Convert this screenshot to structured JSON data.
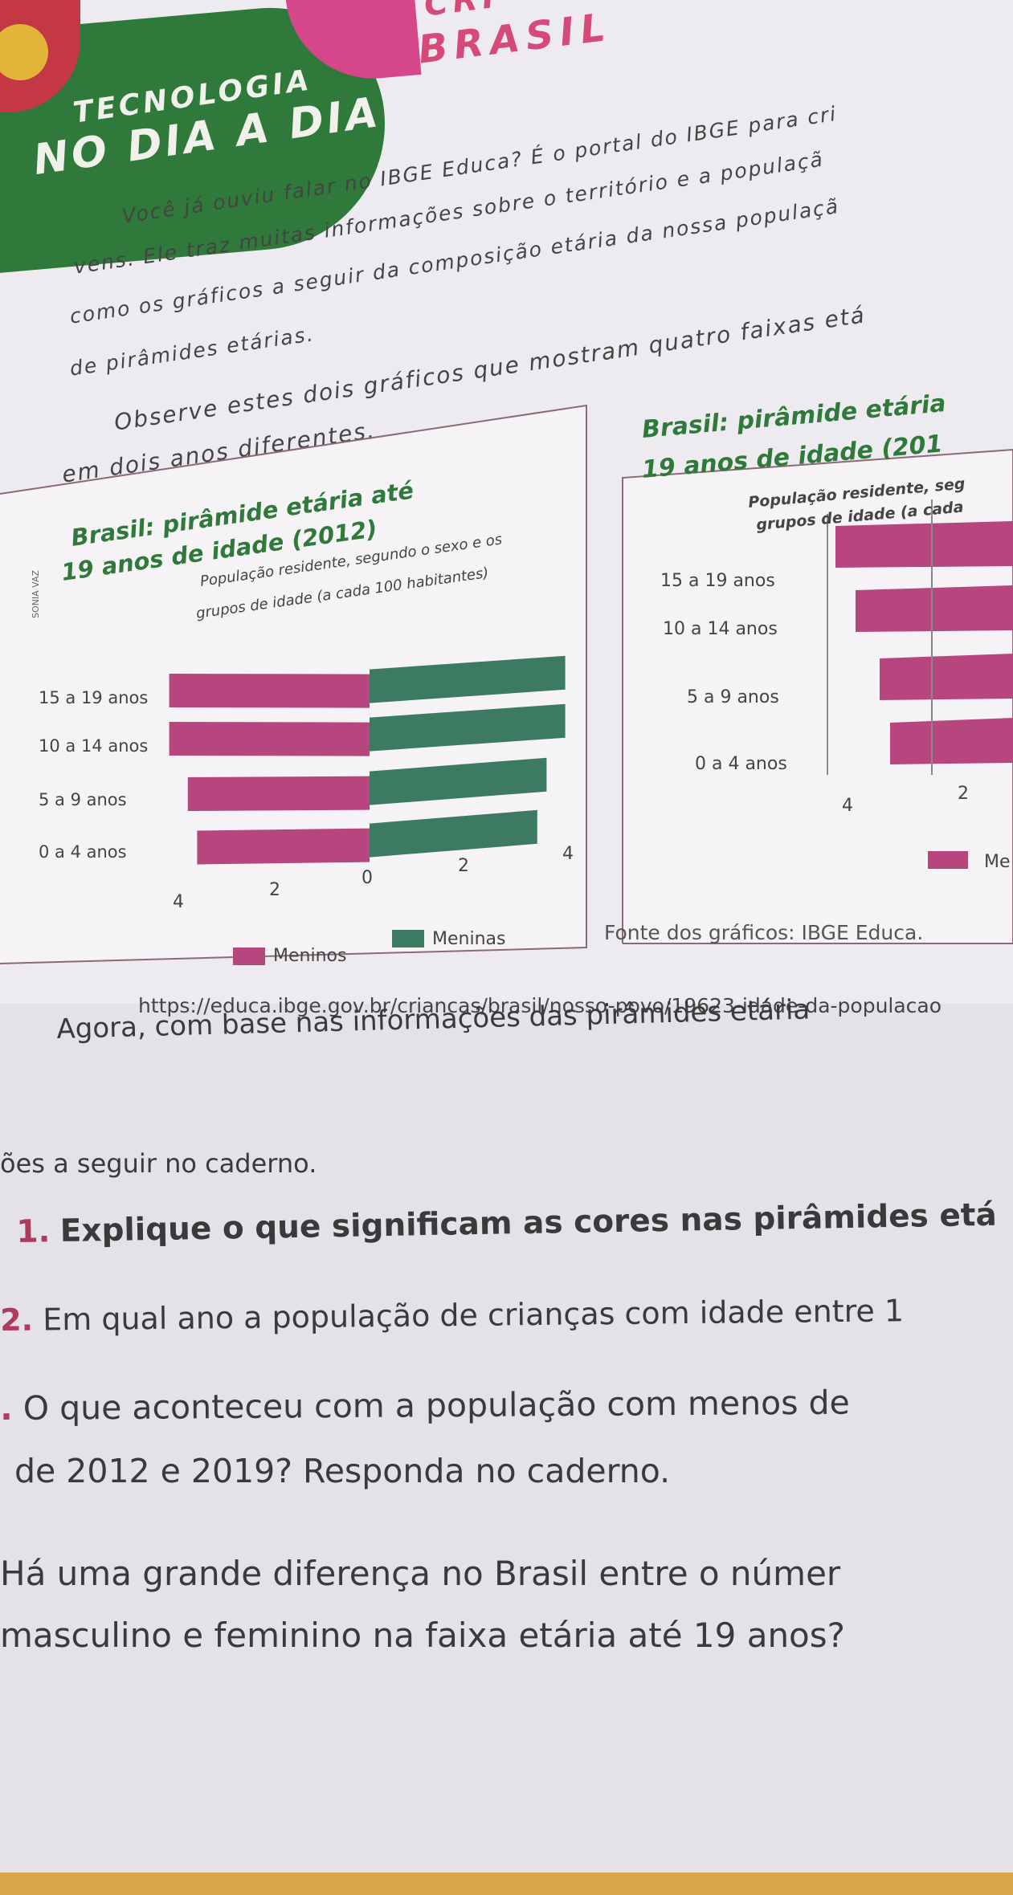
{
  "header": {
    "section_line1": "TECNOLOGIA",
    "section_line2": "NO DIA A DIA",
    "brand_top": "CRI",
    "brand": "BRASIL"
  },
  "intro": {
    "line1": "Você já ouviu falar no IBGE Educa? É o portal do IBGE para cri",
    "line2": "vens. Ele traz muitas informações sobre o território e a populaçã",
    "line3": "como os gráficos a seguir da composição etária da nossa populaçã",
    "line4": "de pirâmides etárias.",
    "line5": "Observe estes dois gráficos que mostram quatro faixas etá",
    "line6": "em dois anos diferentes."
  },
  "colors": {
    "meninos": "#b7467f",
    "meninas": "#3d7a62",
    "title_green": "#2f7a3a"
  },
  "chart_data": [
    {
      "type": "bar",
      "title_line1": "Brasil: pirâmide etária até",
      "title_line2": "19 anos de idade (2012)",
      "subtitle_line1": "População residente, segundo o sexo e os",
      "subtitle_line2": "grupos de idade (a cada 100 habitantes)",
      "credit": "SONIA VAZ",
      "categories": [
        "15 a 19 anos",
        "10 a 14 anos",
        "5 a 9 anos",
        "0 a 4 anos"
      ],
      "series": [
        {
          "name": "Meninos",
          "values": [
            4.3,
            4.3,
            3.9,
            3.7
          ]
        },
        {
          "name": "Meninas",
          "values": [
            4.2,
            4.2,
            3.8,
            3.6
          ]
        }
      ],
      "tick_labels": [
        "4",
        "2",
        "0",
        "2",
        "4"
      ],
      "legend": [
        "Meninos",
        "Meninas"
      ]
    },
    {
      "type": "bar",
      "title_line1": "Brasil: pirâmide etária",
      "title_line2": "19 anos de idade (201",
      "subtitle_line1": "População residente, seg",
      "subtitle_line2": "grupos de idade (a cada",
      "categories": [
        "15 a 19 anos",
        "10 a 14 anos",
        "5 a 9 anos",
        "0 a 4 anos"
      ],
      "series": [
        {
          "name": "Meninos",
          "values": [
            3.6,
            3.4,
            3.3,
            3.0
          ]
        }
      ],
      "tick_labels": [
        "4",
        "2"
      ],
      "legend": [
        "Me"
      ]
    }
  ],
  "source": {
    "fonte": "Fonte dos gráficos: IBGE Educa.",
    "url": "https://educa.ibge.gov.br/criancas/brasil/nosso-povo/19623-idade-da-populacao"
  },
  "questions": {
    "lead": "Agora, com base nas informações das pirâmides etária",
    "lead2": "ões a seguir no caderno.",
    "q1_num": "1.",
    "q1": "Explique o que significam as cores nas pirâmides etá",
    "q2_num": "2.",
    "q2": "Em qual ano a população de crianças com idade entre 1",
    "q3_num": ".",
    "q3": "O que aconteceu com a população com menos de",
    "q3b": "de 2012 e 2019? Responda no caderno.",
    "q4": "Há uma grande diferença no Brasil entre o númer",
    "q4b": "masculino e feminino na faixa etária até 19 anos?"
  }
}
